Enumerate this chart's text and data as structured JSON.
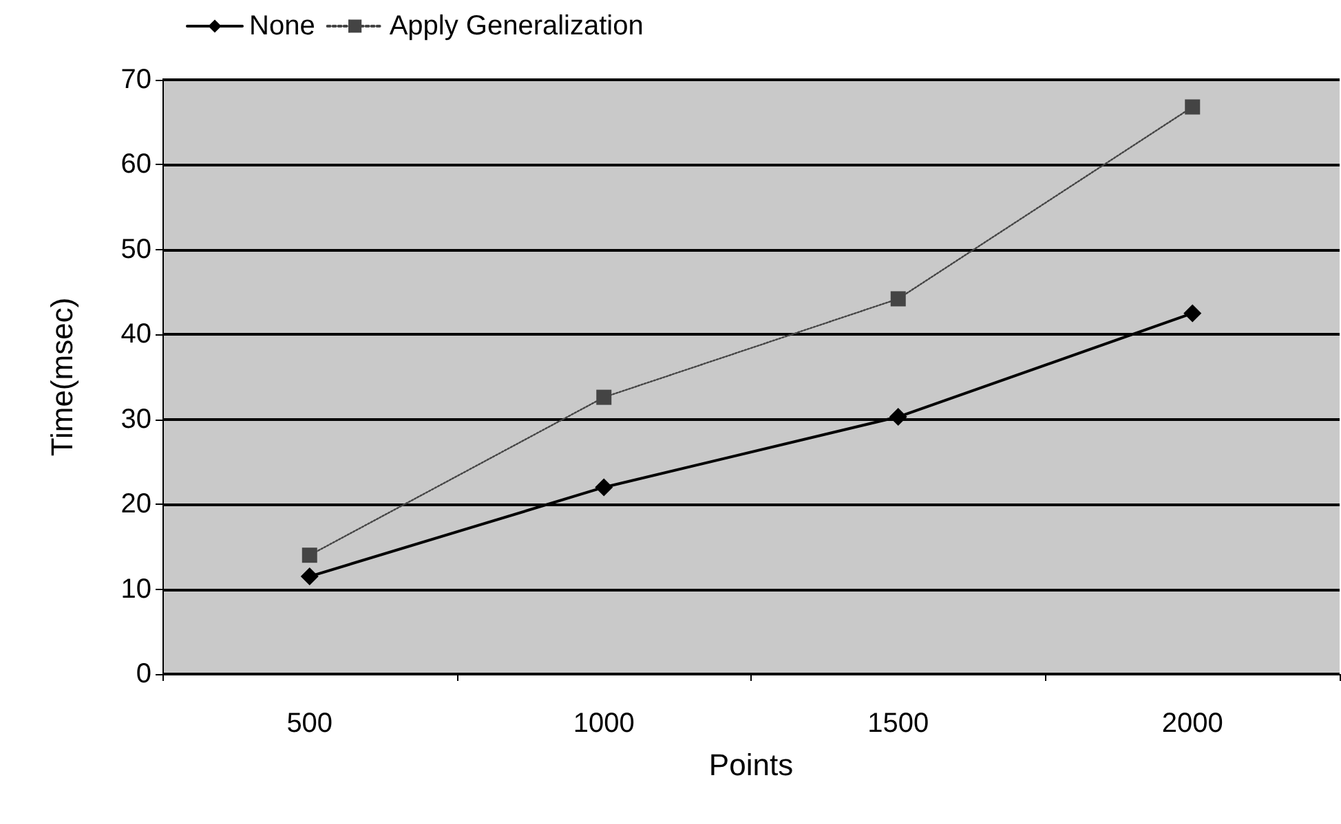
{
  "chart_data": {
    "type": "line",
    "xlabel": "Points",
    "ylabel": "Time(msec)",
    "categories": [
      "500",
      "1000",
      "1500",
      "2000"
    ],
    "series": [
      {
        "name": "None",
        "color": "#000000",
        "marker": "diamond",
        "line_style": "solid",
        "values": [
          11.5,
          22,
          30.3,
          42.5
        ]
      },
      {
        "name": "Apply Generalization",
        "color": "#444444",
        "marker": "square",
        "line_style": "dotted",
        "values": [
          14,
          32.6,
          44.2,
          66.8
        ]
      }
    ],
    "ylim": [
      0,
      70
    ],
    "yticks": [
      0,
      10,
      20,
      30,
      40,
      50,
      60,
      70
    ],
    "grid": "y",
    "legend": "top left"
  }
}
